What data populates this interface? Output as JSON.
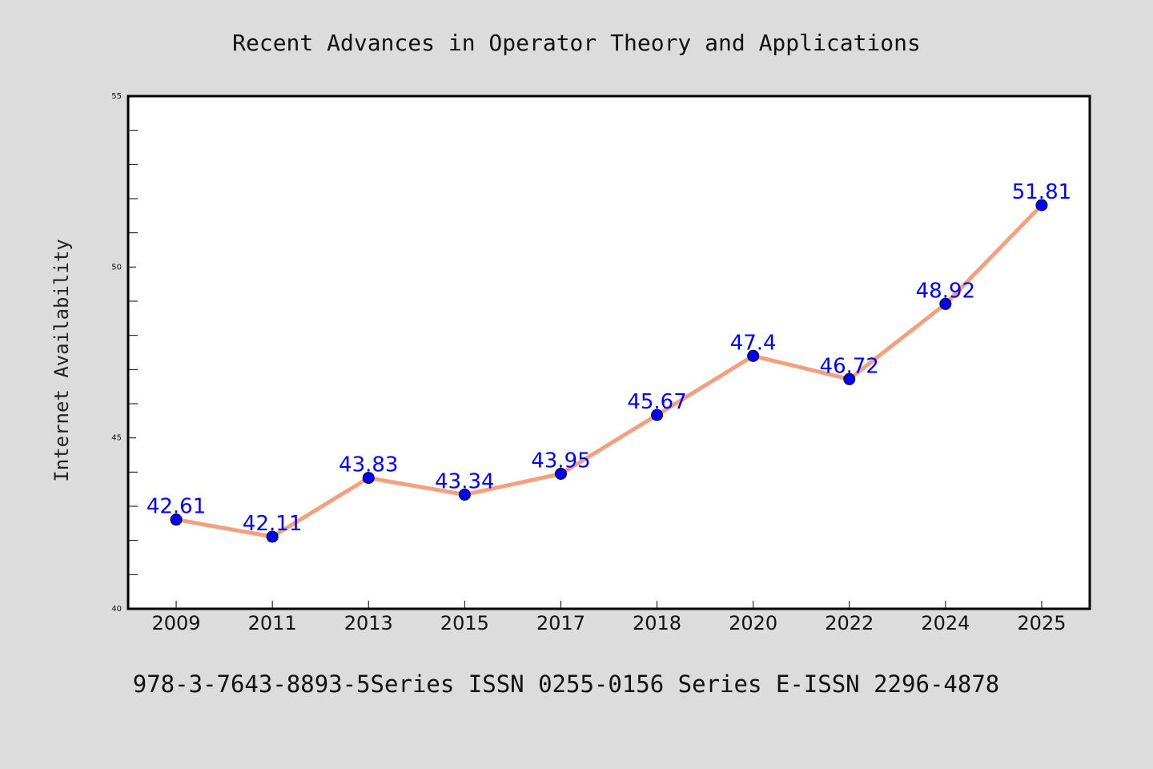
{
  "chart_data": {
    "type": "line",
    "title": "Recent Advances in Operator Theory and Applications",
    "ylabel": "Internet Availability",
    "xlabel": "",
    "categories": [
      "2009",
      "2011",
      "2013",
      "2015",
      "2017",
      "2018",
      "2020",
      "2022",
      "2024",
      "2025"
    ],
    "values": [
      42.61,
      42.11,
      43.83,
      43.34,
      43.95,
      45.67,
      47.4,
      46.72,
      48.92,
      51.81
    ],
    "data_labels": [
      "42.61",
      "42.11",
      "43.83",
      "43.34",
      "43.95",
      "45.67",
      "47.4",
      "46.72",
      "48.92",
      "51.81"
    ],
    "ylim": [
      40,
      55
    ],
    "y_major_ticks": [
      40,
      45,
      50,
      55
    ],
    "y_major_tick_labels": [
      "40",
      "45",
      "50",
      "55"
    ],
    "y_minor_step": 1,
    "grid": false,
    "line_color": "#f4a07e",
    "marker_color": "#0000ff",
    "label_color": "#0000ff",
    "background_color": "#dcdcdc",
    "plot_background_color": "#ffffff"
  },
  "footer_text": "978-3-7643-8893-5Series ISSN 0255-0156 Series E-ISSN 2296-4878"
}
